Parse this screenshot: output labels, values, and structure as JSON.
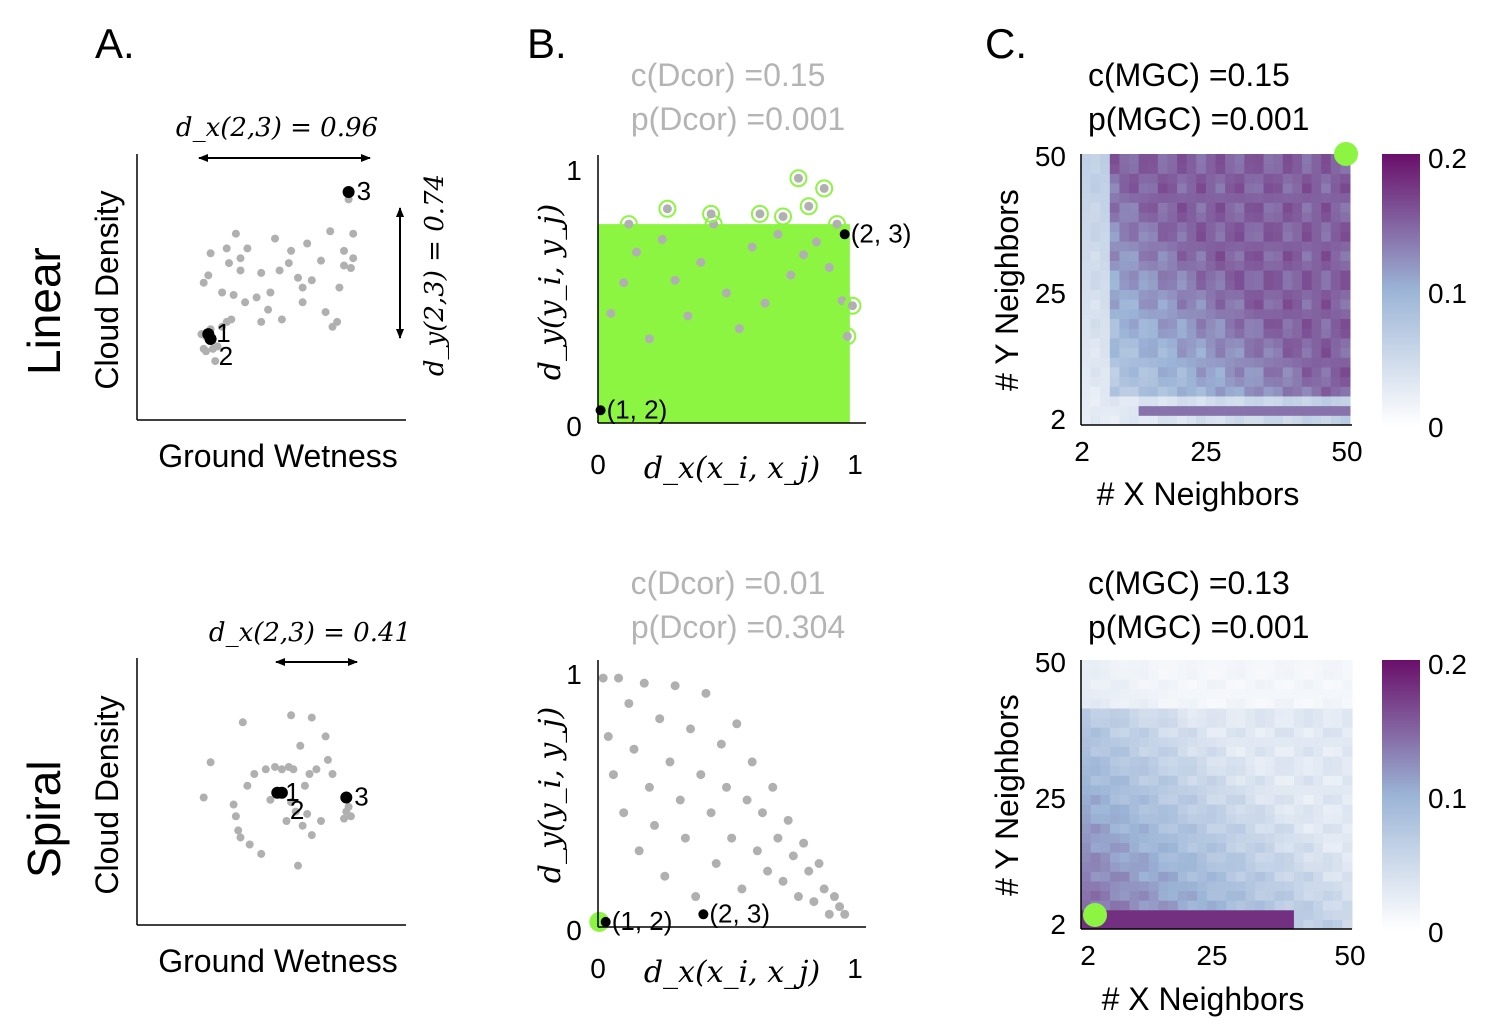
{
  "panels": {
    "a": "A.",
    "b": "B.",
    "c": "C."
  },
  "rows": {
    "linear": "Linear",
    "spiral": "Spiral"
  },
  "colors": {
    "point_gray": "#b0b0b0",
    "highlight_green": "#8cf542",
    "text_gray": "#b4b4b4",
    "black": "#000000",
    "heatmap_low": "#ffffff",
    "heatmap_mid": "#9bb4d6",
    "heatmap_high": "#6a0f6a"
  },
  "chart_data": [
    {
      "id": "A-linear",
      "type": "scatter",
      "xlabel": "Ground Wetness",
      "ylabel": "Cloud Density",
      "xlim": [
        0,
        1
      ],
      "ylim": [
        0,
        1
      ],
      "annotation_x": "d_x(2,3) = 0.96",
      "annotation_y": "d_y(2,3) = 0.74",
      "labeled_points": [
        {
          "label": "1",
          "x": 0.21,
          "y": 0.33
        },
        {
          "label": "2",
          "x": 0.22,
          "y": 0.31
        },
        {
          "label": "3",
          "x": 0.82,
          "y": 0.91
        }
      ],
      "points": [
        [
          0.18,
          0.33
        ],
        [
          0.19,
          0.54
        ],
        [
          0.19,
          0.27
        ],
        [
          0.2,
          0.26
        ],
        [
          0.2,
          0.32
        ],
        [
          0.21,
          0.57
        ],
        [
          0.22,
          0.66
        ],
        [
          0.22,
          0.35
        ],
        [
          0.23,
          0.27
        ],
        [
          0.24,
          0.22
        ],
        [
          0.25,
          0.28
        ],
        [
          0.27,
          0.36
        ],
        [
          0.27,
          0.5
        ],
        [
          0.29,
          0.38
        ],
        [
          0.29,
          0.68
        ],
        [
          0.3,
          0.62
        ],
        [
          0.31,
          0.39
        ],
        [
          0.32,
          0.49
        ],
        [
          0.33,
          0.74
        ],
        [
          0.35,
          0.64
        ],
        [
          0.35,
          0.59
        ],
        [
          0.37,
          0.46
        ],
        [
          0.38,
          0.68
        ],
        [
          0.42,
          0.48
        ],
        [
          0.44,
          0.58
        ],
        [
          0.44,
          0.38
        ],
        [
          0.47,
          0.43
        ],
        [
          0.48,
          0.5
        ],
        [
          0.5,
          0.72
        ],
        [
          0.52,
          0.59
        ],
        [
          0.53,
          0.39
        ],
        [
          0.56,
          0.62
        ],
        [
          0.57,
          0.67
        ],
        [
          0.6,
          0.56
        ],
        [
          0.62,
          0.46
        ],
        [
          0.62,
          0.52
        ],
        [
          0.64,
          0.7
        ],
        [
          0.66,
          0.55
        ],
        [
          0.7,
          0.63
        ],
        [
          0.72,
          0.42
        ],
        [
          0.74,
          0.75
        ],
        [
          0.75,
          0.36
        ],
        [
          0.77,
          0.38
        ],
        [
          0.78,
          0.52
        ],
        [
          0.8,
          0.67
        ],
        [
          0.8,
          0.61
        ],
        [
          0.82,
          0.88
        ],
        [
          0.83,
          0.6
        ],
        [
          0.84,
          0.64
        ],
        [
          0.84,
          0.74
        ]
      ]
    },
    {
      "id": "A-spiral",
      "type": "scatter",
      "xlabel": "Ground Wetness",
      "ylabel": "Cloud Density",
      "xlim": [
        0,
        1
      ],
      "ylim": [
        0,
        1
      ],
      "annotation_x": "d_x(2,3) = 0.41",
      "labeled_points": [
        {
          "label": "1",
          "x": 0.51,
          "y": 0.52
        },
        {
          "label": "2",
          "x": 0.53,
          "y": 0.52
        },
        {
          "label": "3",
          "x": 0.81,
          "y": 0.5
        }
      ],
      "points": [
        [
          0.19,
          0.5
        ],
        [
          0.22,
          0.65
        ],
        [
          0.32,
          0.47
        ],
        [
          0.33,
          0.42
        ],
        [
          0.34,
          0.36
        ],
        [
          0.35,
          0.33
        ],
        [
          0.36,
          0.82
        ],
        [
          0.38,
          0.55
        ],
        [
          0.39,
          0.3
        ],
        [
          0.41,
          0.6
        ],
        [
          0.44,
          0.26
        ],
        [
          0.46,
          0.62
        ],
        [
          0.48,
          0.49
        ],
        [
          0.5,
          0.63
        ],
        [
          0.53,
          0.62
        ],
        [
          0.55,
          0.4
        ],
        [
          0.56,
          0.63
        ],
        [
          0.57,
          0.85
        ],
        [
          0.57,
          0.48
        ],
        [
          0.58,
          0.62
        ],
        [
          0.59,
          0.44
        ],
        [
          0.6,
          0.21
        ],
        [
          0.61,
          0.72
        ],
        [
          0.62,
          0.38
        ],
        [
          0.63,
          0.55
        ],
        [
          0.64,
          0.43
        ],
        [
          0.65,
          0.6
        ],
        [
          0.66,
          0.84
        ],
        [
          0.66,
          0.34
        ],
        [
          0.68,
          0.62
        ],
        [
          0.7,
          0.4
        ],
        [
          0.72,
          0.76
        ],
        [
          0.73,
          0.66
        ],
        [
          0.75,
          0.6
        ],
        [
          0.8,
          0.41
        ],
        [
          0.81,
          0.44
        ],
        [
          0.82,
          0.46
        ],
        [
          0.83,
          0.42
        ]
      ]
    },
    {
      "id": "B-linear",
      "type": "scatter",
      "title": "c(Dcor) =0.15",
      "subtitle": "p(Dcor) =0.001",
      "xlabel": "d_x(x_i, x_j)",
      "ylabel": "d_y(y_i, y_j)",
      "xlim": [
        0,
        1
      ],
      "ylim": [
        0,
        1
      ],
      "xticks": [
        "0",
        "1"
      ],
      "yticks": [
        "0",
        "1"
      ],
      "labeled_points": [
        {
          "label": "(1, 2)",
          "x": 0.01,
          "y": 0.05
        },
        {
          "label": "(2, 3)",
          "x": 0.96,
          "y": 0.74
        }
      ],
      "points_highlighted": "most pairs (green circles, dense cloud)",
      "points": [
        [
          0.05,
          0.43
        ],
        [
          0.1,
          0.55
        ],
        [
          0.15,
          0.67
        ],
        [
          0.2,
          0.33
        ],
        [
          0.25,
          0.72
        ],
        [
          0.3,
          0.56
        ],
        [
          0.35,
          0.42
        ],
        [
          0.4,
          0.63
        ],
        [
          0.45,
          0.78
        ],
        [
          0.5,
          0.51
        ],
        [
          0.55,
          0.37
        ],
        [
          0.6,
          0.69
        ],
        [
          0.65,
          0.47
        ],
        [
          0.7,
          0.74
        ],
        [
          0.72,
          0.81
        ],
        [
          0.75,
          0.58
        ],
        [
          0.8,
          0.66
        ],
        [
          0.82,
          0.85
        ],
        [
          0.85,
          0.71
        ],
        [
          0.88,
          0.92
        ],
        [
          0.9,
          0.61
        ],
        [
          0.93,
          0.78
        ],
        [
          0.95,
          0.48
        ],
        [
          0.97,
          0.34
        ],
        [
          0.99,
          0.46
        ],
        [
          0.12,
          0.78
        ],
        [
          0.27,
          0.84
        ],
        [
          0.44,
          0.82
        ],
        [
          0.63,
          0.82
        ],
        [
          0.78,
          0.96
        ]
      ]
    },
    {
      "id": "B-spiral",
      "type": "scatter",
      "title": "c(Dcor) =0.01",
      "subtitle": "p(Dcor) =0.304",
      "xlabel": "d_x(x_i, x_j)",
      "ylabel": "d_y(y_i, y_j)",
      "xlim": [
        0,
        1
      ],
      "ylim": [
        0,
        1
      ],
      "xticks": [
        "0",
        "1"
      ],
      "yticks": [
        "0",
        "1"
      ],
      "labeled_points": [
        {
          "label": "(1, 2)",
          "x": 0.03,
          "y": 0.02
        },
        {
          "label": "(2, 3)",
          "x": 0.41,
          "y": 0.05
        }
      ],
      "points": [
        [
          0.02,
          0.98
        ],
        [
          0.04,
          0.75
        ],
        [
          0.06,
          0.6
        ],
        [
          0.08,
          0.98
        ],
        [
          0.1,
          0.45
        ],
        [
          0.12,
          0.88
        ],
        [
          0.14,
          0.7
        ],
        [
          0.16,
          0.3
        ],
        [
          0.18,
          0.96
        ],
        [
          0.2,
          0.55
        ],
        [
          0.22,
          0.4
        ],
        [
          0.24,
          0.82
        ],
        [
          0.26,
          0.2
        ],
        [
          0.28,
          0.65
        ],
        [
          0.3,
          0.95
        ],
        [
          0.32,
          0.5
        ],
        [
          0.34,
          0.35
        ],
        [
          0.36,
          0.78
        ],
        [
          0.38,
          0.12
        ],
        [
          0.4,
          0.6
        ],
        [
          0.42,
          0.92
        ],
        [
          0.44,
          0.45
        ],
        [
          0.46,
          0.25
        ],
        [
          0.48,
          0.72
        ],
        [
          0.5,
          0.55
        ],
        [
          0.52,
          0.35
        ],
        [
          0.54,
          0.8
        ],
        [
          0.56,
          0.15
        ],
        [
          0.58,
          0.5
        ],
        [
          0.6,
          0.65
        ],
        [
          0.62,
          0.3
        ],
        [
          0.64,
          0.45
        ],
        [
          0.66,
          0.22
        ],
        [
          0.68,
          0.55
        ],
        [
          0.7,
          0.35
        ],
        [
          0.72,
          0.18
        ],
        [
          0.74,
          0.42
        ],
        [
          0.76,
          0.28
        ],
        [
          0.78,
          0.12
        ],
        [
          0.8,
          0.33
        ],
        [
          0.82,
          0.22
        ],
        [
          0.84,
          0.1
        ],
        [
          0.86,
          0.25
        ],
        [
          0.88,
          0.15
        ],
        [
          0.9,
          0.05
        ],
        [
          0.92,
          0.12
        ],
        [
          0.94,
          0.08
        ],
        [
          0.96,
          0.05
        ]
      ]
    },
    {
      "id": "C-linear",
      "type": "heatmap",
      "title": "c(MGC) =0.15",
      "subtitle": "p(MGC) =0.001",
      "xlabel": "# X Neighbors",
      "ylabel": "# Y Neighbors",
      "xticks": [
        "2",
        "25",
        "50"
      ],
      "yticks": [
        "2",
        "25",
        "50"
      ],
      "colorbar_ticks": [
        "0",
        "0.1",
        "0.2"
      ],
      "clim": [
        0,
        0.2
      ],
      "optimal_scale": {
        "x": 50,
        "y": 50
      }
    },
    {
      "id": "C-spiral",
      "type": "heatmap",
      "title": "c(MGC) =0.13",
      "subtitle": "p(MGC) =0.001",
      "xlabel": "# X Neighbors",
      "ylabel": "# Y Neighbors",
      "xticks": [
        "2",
        "25",
        "50"
      ],
      "yticks": [
        "2",
        "25",
        "50"
      ],
      "colorbar_ticks": [
        "0",
        "0.1",
        "0.2"
      ],
      "clim": [
        0,
        0.2
      ],
      "optimal_scale": {
        "x": 2,
        "y": 2
      }
    }
  ]
}
